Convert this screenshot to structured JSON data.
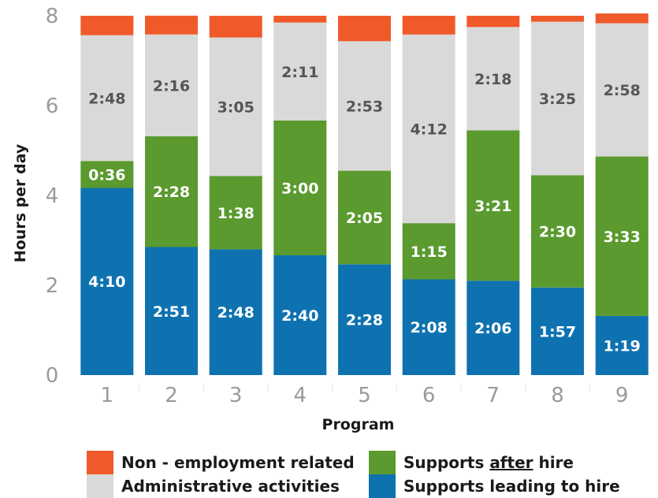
{
  "chart_data": {
    "type": "bar",
    "stacked": true,
    "xlabel": "Program",
    "ylabel": "Hours per day",
    "ylim": [
      0,
      8
    ],
    "yticks": [
      "0",
      "2",
      "4",
      "6",
      "8"
    ],
    "categories": [
      "1",
      "2",
      "3",
      "4",
      "5",
      "6",
      "7",
      "8",
      "9"
    ],
    "series": [
      {
        "name": "Supports leading to hire",
        "color": "#0f72b0",
        "label_color": "#ffffff",
        "values": [
          4.167,
          2.85,
          2.8,
          2.667,
          2.467,
          2.133,
          2.1,
          1.95,
          1.317
        ],
        "labels": [
          "4:10",
          "2:51",
          "2:48",
          "2:40",
          "2:28",
          "2:08",
          "2:06",
          "1:57",
          "1:19"
        ]
      },
      {
        "name": "Supports after hire",
        "color": "#5a9a2e",
        "label_color": "#ffffff",
        "values": [
          0.6,
          2.467,
          1.633,
          3.0,
          2.083,
          1.25,
          3.35,
          2.5,
          3.55
        ],
        "labels": [
          "0:36",
          "2:28",
          "1:38",
          "3:00",
          "2:05",
          "1:15",
          "3:21",
          "2:30",
          "3:33"
        ]
      },
      {
        "name": "Administrative activities",
        "color": "#d9d9d9",
        "label_color": "#555555",
        "values": [
          2.8,
          2.267,
          3.083,
          2.183,
          2.883,
          4.2,
          2.3,
          3.417,
          2.967
        ],
        "labels": [
          "2:48",
          "2:16",
          "3:05",
          "2:11",
          "2:53",
          "4:12",
          "2:18",
          "3:25",
          "2:58"
        ]
      },
      {
        "name": "Non-employment related",
        "color": "#f05a2a",
        "label_color": "#ffffff",
        "values": [
          0.433,
          0.417,
          0.483,
          0.15,
          0.567,
          0.417,
          0.25,
          0.133,
          0.217
        ],
        "labels": []
      }
    ],
    "legend": {
      "placement": "bottom",
      "items": [
        {
          "label": "Non - employment related",
          "color": "#f05a2a"
        },
        {
          "label_before": "Supports ",
          "label_underlined": "after",
          "label_after": " hire",
          "color": "#5a9a2e"
        },
        {
          "label": "Administrative activities",
          "color": "#d9d9d9"
        },
        {
          "label": "Supports leading to hire",
          "color": "#0f72b0"
        }
      ]
    }
  }
}
